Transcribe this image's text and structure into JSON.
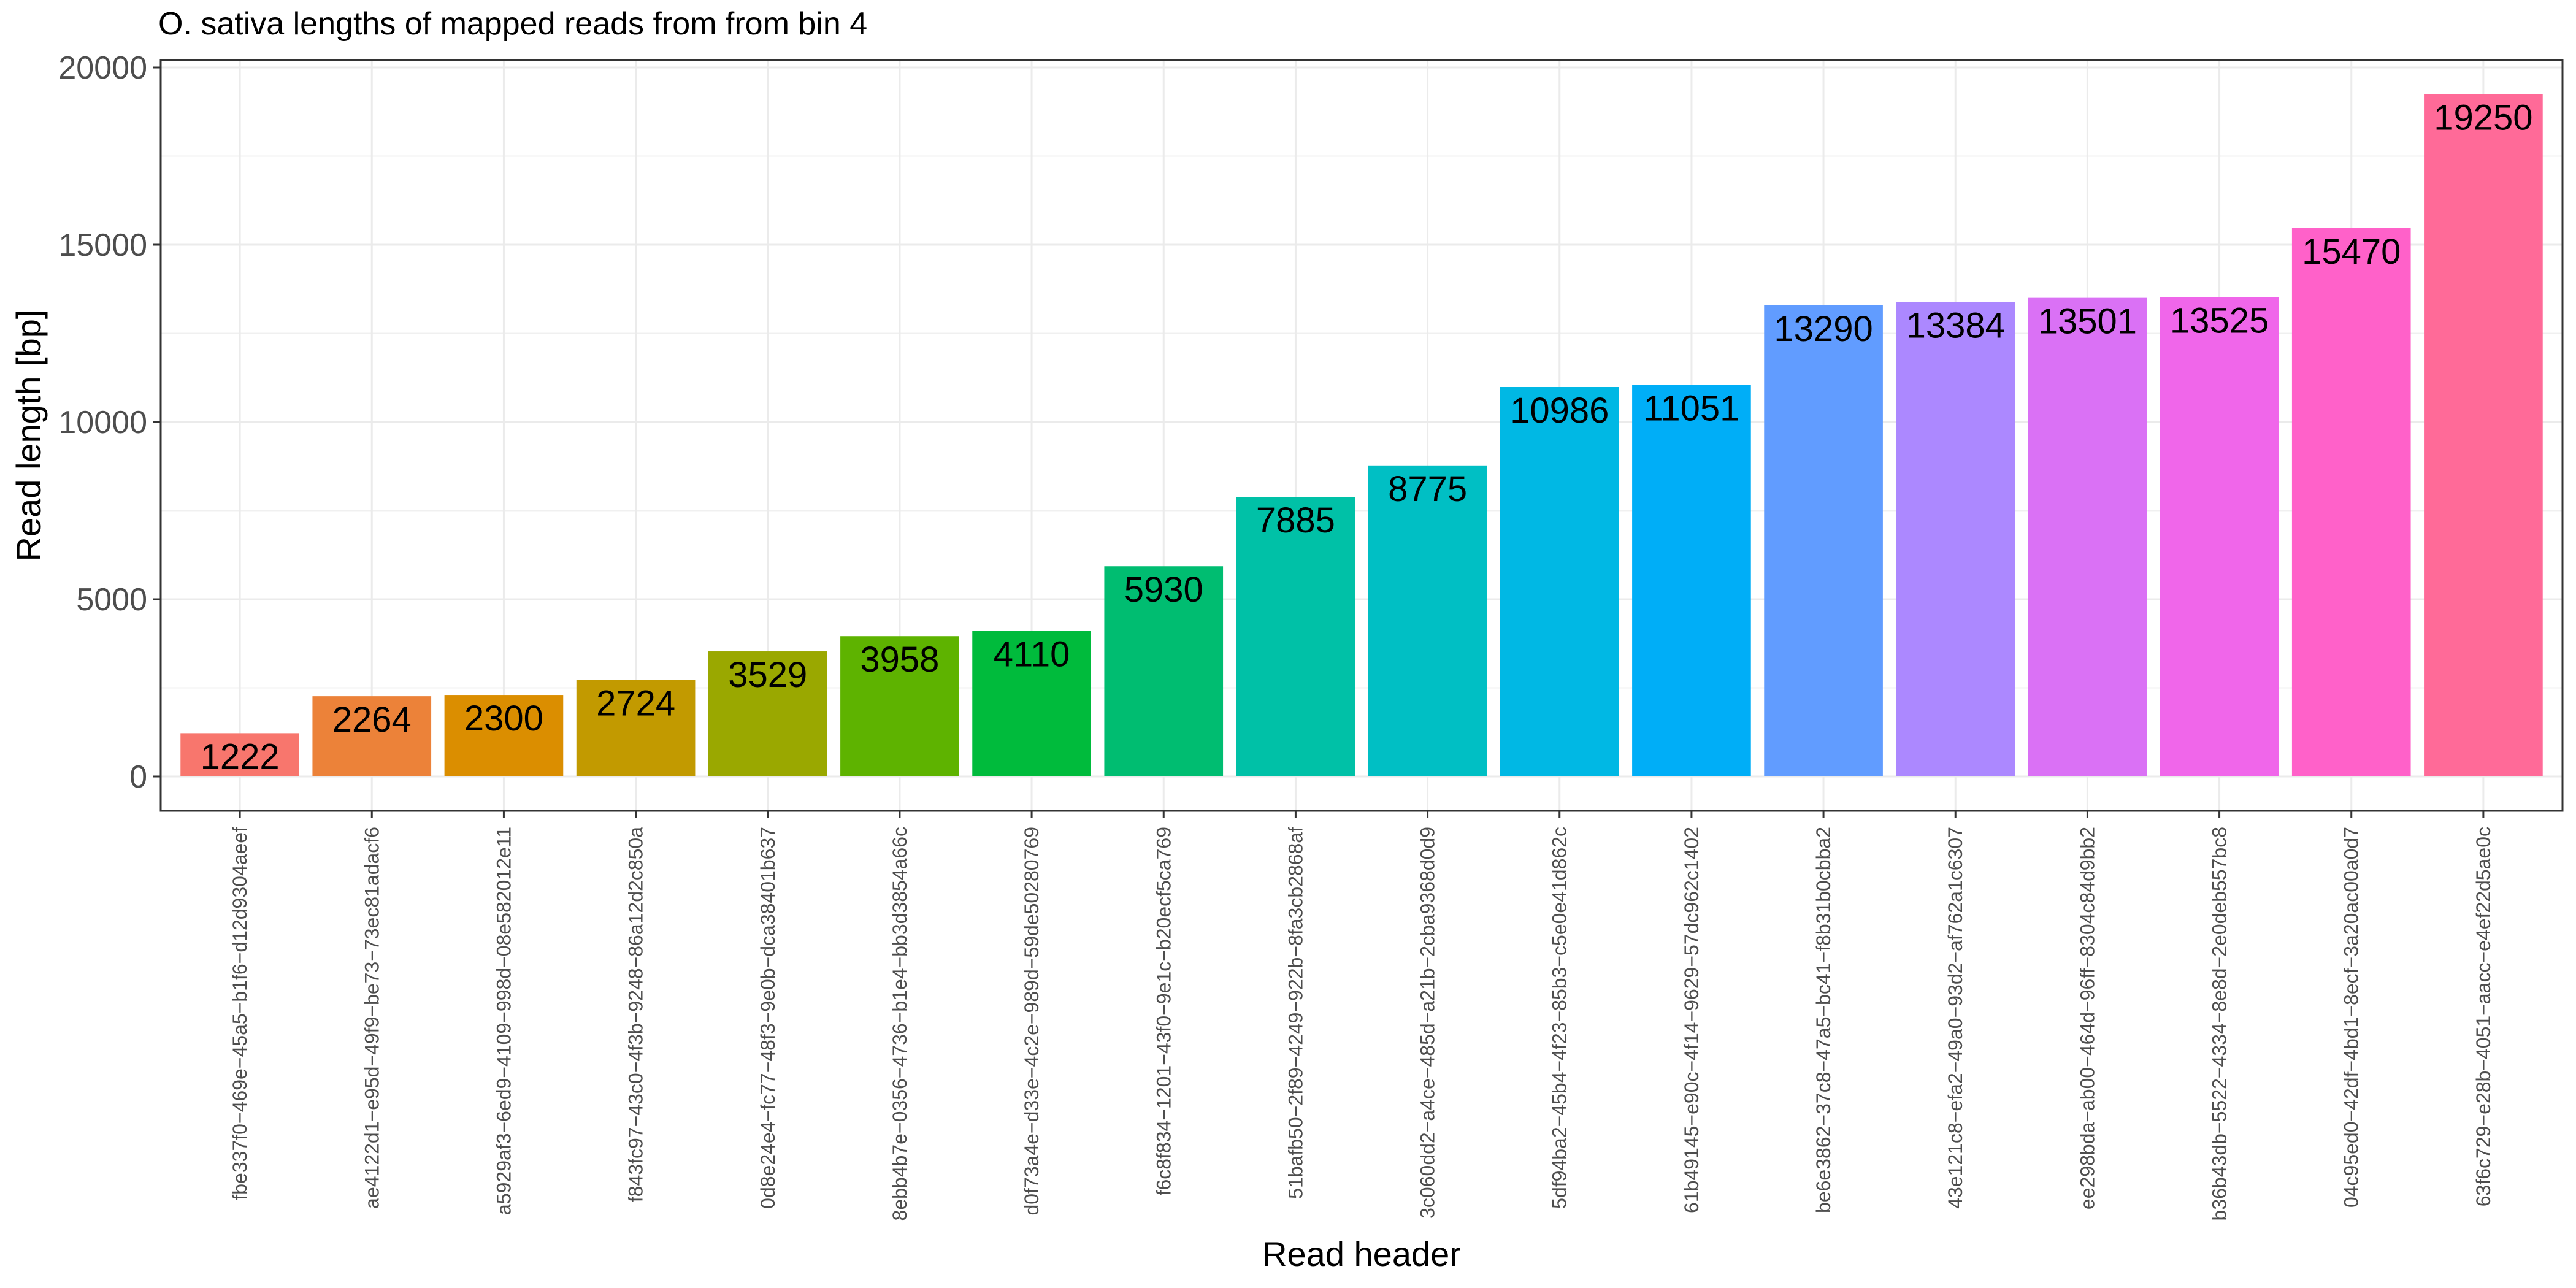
{
  "chart_data": {
    "type": "bar",
    "title": "O. sativa lengths of mapped reads from from bin 4",
    "xlabel": "Read header",
    "ylabel": "Read length [bp]",
    "ylim": [
      0,
      20000
    ],
    "yticks": [
      0,
      5000,
      10000,
      15000,
      20000
    ],
    "grid": true,
    "categories": [
      "fbe337f0−469e−45a5−b1f6−d12d9304aeef",
      "ae4122d1−e95d−49f9−be73−73ec81adacf6",
      "a5929af3−6ed9−4109−998d−08e582012e11",
      "f843fc97−43c0−4f3b−9248−86a12d2c850a",
      "0d8e24e4−fc77−48f3−9e0b−dca38401b637",
      "8ebb4b7e−0356−4736−b1e4−bb3d3854a66c",
      "d0f73a4e−d33e−4c2e−989d−59de50280769",
      "f6c8f834−1201−43f0−9e1c−b20ecf5ca769",
      "51bafb50−2f89−4249−922b−8fa3cb2868af",
      "3c060dd2−a4ce−485d−a21b−2cba9368d0d9",
      "5df94ba2−45b4−4f23−85b3−c5e0e41d862c",
      "61b49145−e90c−4f14−9629−57dc962c1402",
      "be6e3862−37c8−47a5−bc41−f8b31b0cbba2",
      "43e121c8−efa2−49a0−93d2−af762a1c6307",
      "ee298bda−ab00−464d−96ff−8304c84d9bb2",
      "b36b43db−5522−4334−8e8d−2e0deb557bc8",
      "04c95ed0−42df−4bd1−8ecf−3a20ac00a0d7",
      "63f6c729−e28b−4051−aacc−e4ef22d5ae0c"
    ],
    "values": [
      1222,
      2264,
      2300,
      2724,
      3529,
      3958,
      4110,
      5930,
      7885,
      8775,
      10986,
      11051,
      13290,
      13384,
      13501,
      13525,
      15470,
      19250
    ],
    "colors": [
      "#F8766D",
      "#EA8331",
      "#D89000",
      "#C09B00",
      "#A3A500",
      "#7CAE00",
      "#39B600",
      "#00BB4E",
      "#00BF7D",
      "#00C1A3",
      "#00BFC4",
      "#00BAE0",
      "#00B0F6",
      "#35A2FF",
      "#9590FF",
      "#C77CFF",
      "#E76BF3",
      "#FA62DB",
      "#FF62BC",
      "#FF6C91"
    ],
    "bar_colors": [
      "#F8766D",
      "#EC8239",
      "#DB8E00",
      "#C29A00",
      "#9AA800",
      "#5EB300",
      "#00BB3C",
      "#00BD71",
      "#00C1A7",
      "#00BFC4",
      "#00B8E4",
      "#00AEF7",
      "#619CFF",
      "#AC88FF",
      "#DA71F5",
      "#F066EA",
      "#FF61C9",
      "#FF6A98"
    ]
  }
}
